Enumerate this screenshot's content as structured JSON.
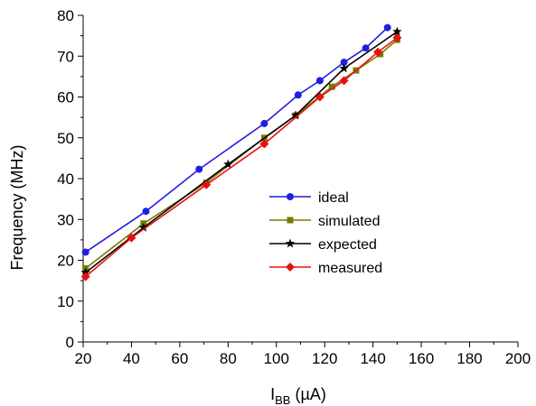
{
  "chart_data": {
    "type": "line",
    "xlabel": {
      "main": "I",
      "sub": "BB",
      "unit": " (µA)"
    },
    "ylabel": "Frequency  (MHz)",
    "xlim": [
      20,
      200
    ],
    "ylim": [
      0,
      80
    ],
    "x_ticks": [
      20,
      40,
      60,
      80,
      100,
      120,
      140,
      160,
      180,
      200
    ],
    "y_ticks": [
      0,
      10,
      20,
      30,
      40,
      50,
      60,
      70,
      80
    ],
    "grid": false,
    "legend_position": "center",
    "series": [
      {
        "name": "ideal",
        "color": "#1f1fe0",
        "marker": "circle",
        "x": [
          21,
          46,
          68,
          95,
          109,
          118,
          128,
          137,
          146
        ],
        "y": [
          22,
          32,
          42.3,
          53.5,
          60.5,
          64,
          68.5,
          72,
          77
        ]
      },
      {
        "name": "simulated",
        "color": "#7a7a00",
        "marker": "square",
        "x": [
          21,
          45,
          71,
          95,
          108,
          123,
          133,
          143,
          150
        ],
        "y": [
          18,
          29,
          39,
          50,
          55.5,
          62.5,
          66.5,
          70.5,
          74
        ]
      },
      {
        "name": "expected",
        "color": "#000000",
        "marker": "star",
        "x": [
          21,
          45,
          80,
          108,
          128,
          150
        ],
        "y": [
          17,
          28,
          43.5,
          55.5,
          67,
          76
        ]
      },
      {
        "name": "measured",
        "color": "#e81010",
        "marker": "diamond",
        "x": [
          21,
          40,
          71,
          95,
          118,
          128,
          142,
          150
        ],
        "y": [
          16,
          25.5,
          38.5,
          48.5,
          60,
          64,
          71,
          74.5
        ]
      }
    ]
  }
}
